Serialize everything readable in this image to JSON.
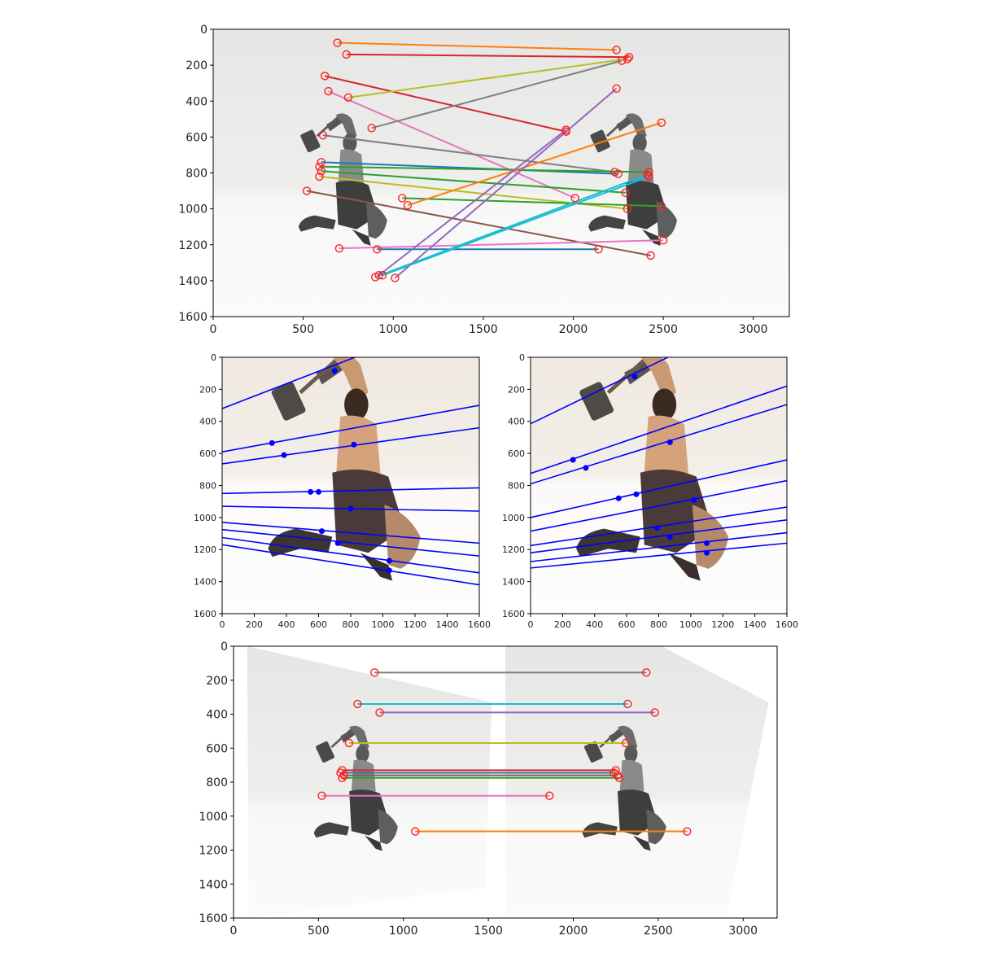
{
  "chart_data": [
    {
      "type": "scatter",
      "panel": "matches-unrectified",
      "xlim": [
        0,
        3200
      ],
      "ylim": [
        1600,
        0
      ],
      "xticks": [
        0,
        500,
        1000,
        1500,
        2000,
        2500,
        3000
      ],
      "yticks": [
        0,
        200,
        400,
        600,
        800,
        1000,
        1200,
        1400,
        1600
      ],
      "grid": false,
      "background_image": "grayscale photo pair: hammer-wielding warrior figurine, two views side by side",
      "marker": "red open circle",
      "matches": [
        {
          "x1": 690,
          "y1": 75,
          "x2": 2240,
          "y2": 115,
          "color": "#ff7f0e"
        },
        {
          "x1": 740,
          "y1": 140,
          "x2": 2310,
          "y2": 155,
          "color": "#d62728"
        },
        {
          "x1": 620,
          "y1": 260,
          "x2": 1960,
          "y2": 570,
          "color": "#d62728"
        },
        {
          "x1": 750,
          "y1": 380,
          "x2": 2300,
          "y2": 165,
          "color": "#bcbd22"
        },
        {
          "x1": 640,
          "y1": 345,
          "x2": 2010,
          "y2": 940,
          "color": "#e377c2"
        },
        {
          "x1": 880,
          "y1": 550,
          "x2": 2270,
          "y2": 175,
          "color": "#7f7f7f"
        },
        {
          "x1": 610,
          "y1": 590,
          "x2": 2230,
          "y2": 795,
          "color": "#7f7f7f"
        },
        {
          "x1": 600,
          "y1": 740,
          "x2": 2250,
          "y2": 805,
          "color": "#1f77b4"
        },
        {
          "x1": 590,
          "y1": 765,
          "x2": 2420,
          "y2": 795,
          "color": "#2ca02c"
        },
        {
          "x1": 600,
          "y1": 790,
          "x2": 2290,
          "y2": 910,
          "color": "#2ca02c"
        },
        {
          "x1": 590,
          "y1": 820,
          "x2": 2300,
          "y2": 1000,
          "color": "#bcbd22"
        },
        {
          "x1": 520,
          "y1": 900,
          "x2": 2430,
          "y2": 1260,
          "color": "#8c564b"
        },
        {
          "x1": 1050,
          "y1": 940,
          "x2": 2490,
          "y2": 985,
          "color": "#2ca02c"
        },
        {
          "x1": 1080,
          "y1": 980,
          "x2": 2490,
          "y2": 520,
          "color": "#ff7f0e"
        },
        {
          "x1": 700,
          "y1": 1220,
          "x2": 2500,
          "y2": 1175,
          "color": "#e377c2"
        },
        {
          "x1": 910,
          "y1": 1225,
          "x2": 2140,
          "y2": 1225,
          "color": "#1f77b4"
        },
        {
          "x1": 900,
          "y1": 1380,
          "x2": 2410,
          "y2": 810,
          "color": "#17becf"
        },
        {
          "x1": 1010,
          "y1": 1385,
          "x2": 2240,
          "y2": 330,
          "color": "#9467bd"
        },
        {
          "x1": 920,
          "y1": 1370,
          "x2": 1960,
          "y2": 560,
          "color": "#9467bd"
        },
        {
          "x1": 940,
          "y1": 1370,
          "x2": 2420,
          "y2": 820,
          "color": "#17becf"
        }
      ]
    },
    {
      "type": "line",
      "panel": "epilines-left",
      "xlim": [
        0,
        1600
      ],
      "ylim": [
        1600,
        0
      ],
      "xticks": [
        0,
        200,
        400,
        600,
        800,
        1000,
        1200,
        1400,
        1600
      ],
      "yticks": [
        0,
        200,
        400,
        600,
        800,
        1000,
        1200,
        1400,
        1600
      ],
      "grid": false,
      "background_image": "color photo: hammer-wielding warrior figurine, left view",
      "line_color": "#0000ff",
      "points": [
        {
          "x": 700,
          "y": 85
        },
        {
          "x": 310,
          "y": 535
        },
        {
          "x": 385,
          "y": 610
        },
        {
          "x": 820,
          "y": 545
        },
        {
          "x": 550,
          "y": 840
        },
        {
          "x": 600,
          "y": 840
        },
        {
          "x": 800,
          "y": 945
        },
        {
          "x": 620,
          "y": 1085
        },
        {
          "x": 720,
          "y": 1160
        },
        {
          "x": 1040,
          "y": 1270
        },
        {
          "x": 1040,
          "y": 1330
        }
      ],
      "epilines": [
        {
          "y_at_x0": 320,
          "y_at_x1600": -300
        },
        {
          "y_at_x0": 590,
          "y_at_x1600": 300
        },
        {
          "y_at_x0": 665,
          "y_at_x1600": 440
        },
        {
          "y_at_x0": 850,
          "y_at_x1600": 815
        },
        {
          "y_at_x0": 930,
          "y_at_x1600": 960
        },
        {
          "y_at_x0": 1030,
          "y_at_x1600": 1160
        },
        {
          "y_at_x0": 1075,
          "y_at_x1600": 1240
        },
        {
          "y_at_x0": 1125,
          "y_at_x1600": 1345
        },
        {
          "y_at_x0": 1170,
          "y_at_x1600": 1420
        }
      ]
    },
    {
      "type": "line",
      "panel": "epilines-right",
      "xlim": [
        0,
        1600
      ],
      "ylim": [
        1600,
        0
      ],
      "xticks": [
        0,
        200,
        400,
        600,
        800,
        1000,
        1200,
        1400,
        1600
      ],
      "yticks": [
        0,
        200,
        400,
        600,
        800,
        1000,
        1200,
        1400,
        1600
      ],
      "grid": false,
      "background_image": "color photo: hammer-wielding warrior figurine, right view",
      "line_color": "#0000ff",
      "points": [
        {
          "x": 650,
          "y": 120
        },
        {
          "x": 265,
          "y": 640
        },
        {
          "x": 345,
          "y": 690
        },
        {
          "x": 870,
          "y": 530
        },
        {
          "x": 550,
          "y": 880
        },
        {
          "x": 660,
          "y": 855
        },
        {
          "x": 1020,
          "y": 890
        },
        {
          "x": 790,
          "y": 1065
        },
        {
          "x": 870,
          "y": 1120
        },
        {
          "x": 1100,
          "y": 1160
        },
        {
          "x": 1100,
          "y": 1220
        }
      ],
      "epilines": [
        {
          "y_at_x0": 415,
          "y_at_x1600": -360
        },
        {
          "y_at_x0": 725,
          "y_at_x1600": 180
        },
        {
          "y_at_x0": 790,
          "y_at_x1600": 295
        },
        {
          "y_at_x0": 1000,
          "y_at_x1600": 640
        },
        {
          "y_at_x0": 1085,
          "y_at_x1600": 770
        },
        {
          "y_at_x0": 1175,
          "y_at_x1600": 935
        },
        {
          "y_at_x0": 1220,
          "y_at_x1600": 1015
        },
        {
          "y_at_x0": 1275,
          "y_at_x1600": 1095
        },
        {
          "y_at_x0": 1315,
          "y_at_x1600": 1160
        }
      ]
    },
    {
      "type": "scatter",
      "panel": "matches-rectified",
      "xlim": [
        0,
        3200
      ],
      "ylim": [
        1600,
        0
      ],
      "xticks": [
        0,
        500,
        1000,
        1500,
        2000,
        2500,
        3000
      ],
      "yticks": [
        0,
        200,
        400,
        600,
        800,
        1000,
        1200,
        1400,
        1600
      ],
      "grid": false,
      "background_image": "grayscale rectified photo pair of the warrior figurine",
      "marker": "red open circle",
      "matches": [
        {
          "x1": 830,
          "y1": 155,
          "x2": 2430,
          "y2": 155,
          "color": "#7f7f7f"
        },
        {
          "x1": 730,
          "y1": 340,
          "x2": 2320,
          "y2": 340,
          "color": "#17becf"
        },
        {
          "x1": 860,
          "y1": 390,
          "x2": 2480,
          "y2": 390,
          "color": "#9467bd"
        },
        {
          "x1": 680,
          "y1": 570,
          "x2": 2310,
          "y2": 570,
          "color": "#bcbd22"
        },
        {
          "x1": 640,
          "y1": 730,
          "x2": 2250,
          "y2": 730,
          "color": "#d62728"
        },
        {
          "x1": 630,
          "y1": 745,
          "x2": 2240,
          "y2": 745,
          "color": "#1f77b4"
        },
        {
          "x1": 650,
          "y1": 760,
          "x2": 2260,
          "y2": 760,
          "color": "#8c564b"
        },
        {
          "x1": 640,
          "y1": 775,
          "x2": 2270,
          "y2": 775,
          "color": "#2ca02c"
        },
        {
          "x1": 520,
          "y1": 880,
          "x2": 1860,
          "y2": 880,
          "color": "#e377c2"
        },
        {
          "x1": 1070,
          "y1": 1090,
          "x2": 2670,
          "y2": 1090,
          "color": "#ff7f0e"
        }
      ]
    }
  ]
}
